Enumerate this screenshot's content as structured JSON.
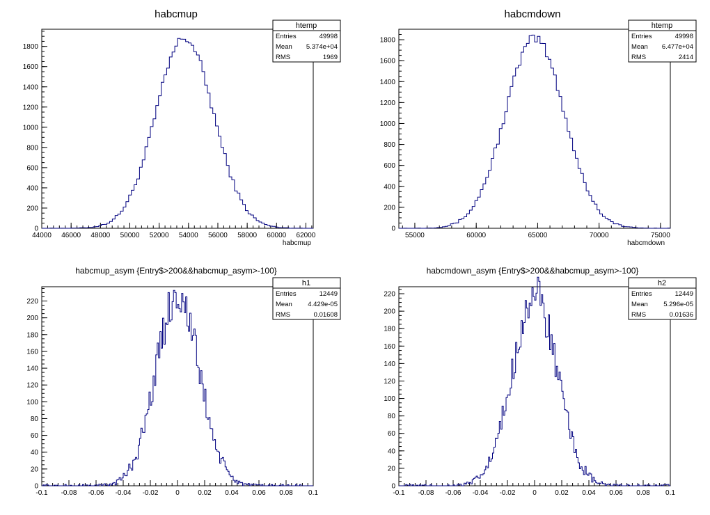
{
  "page": {
    "background": "#ffffff",
    "line_color": "#00007f"
  },
  "panels": [
    {
      "title": "habcmup",
      "xlabel": "habcmup",
      "stats": {
        "name": "htemp",
        "rows": [
          [
            "Entries",
            "49998"
          ],
          [
            "Mean",
            "5.374e+04"
          ],
          [
            "RMS",
            "1969"
          ]
        ]
      },
      "x_ticks": [
        "44000",
        "46000",
        "48000",
        "50000",
        "52000",
        "54000",
        "56000",
        "58000",
        "60000",
        "62000"
      ],
      "y_ticks": [
        "0",
        "200",
        "400",
        "600",
        "800",
        "1000",
        "1200",
        "1400",
        "1600",
        "1800"
      ]
    },
    {
      "title": "habcmdown",
      "xlabel": "habcmdown",
      "stats": {
        "name": "htemp",
        "rows": [
          [
            "Entries",
            "49998"
          ],
          [
            "Mean",
            "6.477e+04"
          ],
          [
            "RMS",
            "2414"
          ]
        ]
      },
      "x_ticks": [
        "55000",
        "60000",
        "65000",
        "70000",
        "75000"
      ],
      "y_ticks": [
        "0",
        "200",
        "400",
        "600",
        "800",
        "1000",
        "1200",
        "1400",
        "1600",
        "1800"
      ]
    },
    {
      "title": "habcmup_asym {Entry$>200&&habcmup_asym>-100}",
      "xlabel": "",
      "stats": {
        "name": "h1",
        "rows": [
          [
            "Entries",
            "12449"
          ],
          [
            "Mean",
            "4.429e-05"
          ],
          [
            "RMS",
            "0.01608"
          ]
        ]
      },
      "x_ticks": [
        "-0.1",
        "-0.08",
        "-0.06",
        "-0.04",
        "-0.02",
        "0",
        "0.02",
        "0.04",
        "0.06",
        "0.08",
        "0.1"
      ],
      "y_ticks": [
        "0",
        "20",
        "40",
        "60",
        "80",
        "100",
        "120",
        "140",
        "160",
        "180",
        "200",
        "220"
      ]
    },
    {
      "title": "habcmdown_asym {Entry$>200&&habcmup_asym>-100}",
      "xlabel": "",
      "stats": {
        "name": "h2",
        "rows": [
          [
            "Entries",
            "12449"
          ],
          [
            "Mean",
            "5.296e-05"
          ],
          [
            "RMS",
            "0.01636"
          ]
        ]
      },
      "x_ticks": [
        "-0.1",
        "-0.08",
        "-0.06",
        "-0.04",
        "-0.02",
        "0",
        "0.02",
        "0.04",
        "0.06",
        "0.08",
        "0.1"
      ],
      "y_ticks": [
        "0",
        "20",
        "40",
        "60",
        "80",
        "100",
        "120",
        "140",
        "160",
        "180",
        "200",
        "220"
      ]
    }
  ],
  "chart_data": [
    {
      "type": "histogram",
      "title": "habcmup",
      "xlabel": "habcmup",
      "xlim": [
        44000,
        62500
      ],
      "ylim": [
        0,
        1970
      ],
      "bins": 100,
      "entries": 49998,
      "mean": 53740,
      "rms": 1969,
      "peak": 1880,
      "line_color": "#00007f"
    },
    {
      "type": "histogram",
      "title": "habcmdown",
      "xlabel": "habcmdown",
      "xlim": [
        53700,
        75800
      ],
      "ylim": [
        0,
        1900
      ],
      "bins": 100,
      "entries": 49998,
      "mean": 64770,
      "rms": 2414,
      "peak": 1810,
      "line_color": "#00007f"
    },
    {
      "type": "histogram",
      "title": "habcmup_asym {Entry$>200&&habcmup_asym>-100}",
      "xlim": [
        -0.1,
        0.1
      ],
      "ylim": [
        0,
        237
      ],
      "bins": 200,
      "entries": 12449,
      "mean": 4.429e-05,
      "rms": 0.01608,
      "peak": 227,
      "line_color": "#00007f"
    },
    {
      "type": "histogram",
      "title": "habcmdown_asym {Entry$>200&&habcmup_asym>-100}",
      "xlim": [
        -0.1,
        0.1
      ],
      "ylim": [
        0,
        228
      ],
      "bins": 200,
      "entries": 12449,
      "mean": 5.296e-05,
      "rms": 0.01636,
      "peak": 218,
      "line_color": "#00007f"
    }
  ]
}
